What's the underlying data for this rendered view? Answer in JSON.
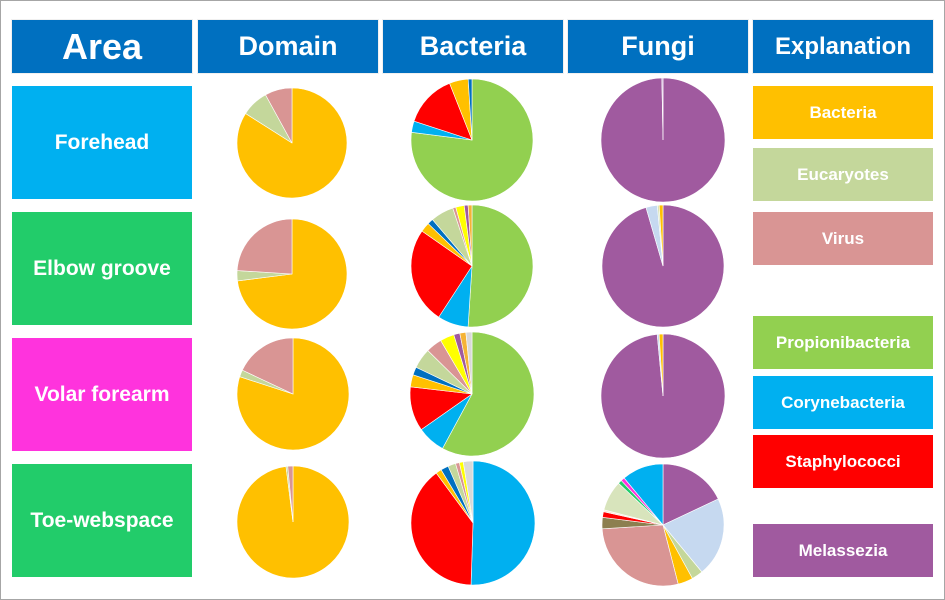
{
  "headers": {
    "area": "Area",
    "domain": "Domain",
    "bacteria": "Bacteria",
    "fungi": "Fungi",
    "explanation": "Explanation"
  },
  "colors": {
    "header_blue": "#0070c0",
    "forehead": "#00b0f0",
    "elbow_groove": "#22cc6a",
    "volar_forearm": "#ff33dd",
    "toe_webspace": "#22cc6a",
    "bacteria": "#ffc000",
    "eucaryotes": "#c4d79b",
    "virus": "#d99594",
    "propionibacteria": "#92d050",
    "corynebacteria": "#00b0f0",
    "staphylococci": "#ff0000",
    "melassezia": "#a05a9f"
  },
  "areas": [
    {
      "label": "Forehead",
      "color": "#00b0f0"
    },
    {
      "label": "Elbow groove",
      "color": "#22cc6a"
    },
    {
      "label": "Volar forearm",
      "color": "#ff33dd"
    },
    {
      "label": "Toe-webspace",
      "color": "#22cc6a"
    }
  ],
  "legend": [
    {
      "label": "Bacteria",
      "color": "#ffc000"
    },
    {
      "label": "Eucaryotes",
      "color": "#c4d79b"
    },
    {
      "label": "Virus",
      "color": "#d99594"
    },
    {
      "label": "Propionibacteria",
      "color": "#92d050"
    },
    {
      "label": "Corynebacteria",
      "color": "#00b0f0"
    },
    {
      "label": "Staphylococci",
      "color": "#ff0000"
    },
    {
      "label": "Melassezia",
      "color": "#a05a9f"
    }
  ],
  "chart_data": [
    {
      "type": "pie",
      "title": "Domain - Forehead",
      "categories": [
        "Bacteria",
        "Eucaryotes",
        "Virus"
      ],
      "values": [
        84,
        8,
        8
      ],
      "colors": [
        "#ffc000",
        "#c4d79b",
        "#d99594"
      ]
    },
    {
      "type": "pie",
      "title": "Bacteria - Forehead",
      "categories": [
        "Propionibacteria",
        "Corynebacteria",
        "Staphylococci",
        "Other (orange)",
        "Other (dark blue)"
      ],
      "values": [
        77,
        3,
        14,
        5,
        1
      ],
      "colors": [
        "#92d050",
        "#00b0f0",
        "#ff0000",
        "#ffc000",
        "#0070c0"
      ]
    },
    {
      "type": "pie",
      "title": "Fungi - Forehead",
      "categories": [
        "Melassezia",
        "Other"
      ],
      "values": [
        99.7,
        0.3
      ],
      "colors": [
        "#a05a9f",
        "#c9a8d6"
      ]
    },
    {
      "type": "pie",
      "title": "Domain - Elbow groove",
      "categories": [
        "Bacteria",
        "Eucaryotes",
        "Virus"
      ],
      "values": [
        73,
        3,
        24
      ],
      "colors": [
        "#ffc000",
        "#c4d79b",
        "#d99594"
      ]
    },
    {
      "type": "pie",
      "title": "Bacteria - Elbow groove",
      "categories": [
        "Propionibacteria",
        "Corynebacteria",
        "Staphylococci",
        "Other (orange)",
        "Other (dark blue)",
        "Other (light green)",
        "Other (pink)",
        "Other (yellow)",
        "Other (purple)",
        "Other (amber)"
      ],
      "values": [
        50,
        8,
        25,
        2.5,
        1.5,
        6,
        0.8,
        2.2,
        1,
        1
      ],
      "colors": [
        "#92d050",
        "#00b0f0",
        "#ff0000",
        "#ffc000",
        "#0070c0",
        "#c4d79b",
        "#d99594",
        "#ffff00",
        "#a05a9f",
        "#f5b335"
      ]
    },
    {
      "type": "pie",
      "title": "Fungi - Elbow groove",
      "categories": [
        "Melassezia",
        "Other (light blue)",
        "Other (light green)",
        "Other (orange)"
      ],
      "values": [
        95.5,
        3,
        0.5,
        1
      ],
      "colors": [
        "#a05a9f",
        "#c6d9f0",
        "#d7e4bd",
        "#ffc000"
      ]
    },
    {
      "type": "pie",
      "title": "Domain - Volar forearm",
      "categories": [
        "Bacteria",
        "Eucaryotes",
        "Virus"
      ],
      "values": [
        80,
        2,
        18
      ],
      "colors": [
        "#ffc000",
        "#c4d79b",
        "#d99594"
      ]
    },
    {
      "type": "pie",
      "title": "Bacteria - Volar forearm",
      "categories": [
        "Propionibacteria",
        "Corynebacteria",
        "Staphylococci",
        "Other (orange)",
        "Other (dark blue)",
        "Other (light green)",
        "Other (pink)",
        "Other (yellow)",
        "Other (purple)",
        "Other (amber)",
        "Other (grey)"
      ],
      "values": [
        55,
        7,
        11,
        3,
        2,
        5,
        4,
        3.5,
        1.5,
        1.5,
        1.5
      ],
      "colors": [
        "#92d050",
        "#00b0f0",
        "#ff0000",
        "#ffc000",
        "#0070c0",
        "#c4d79b",
        "#d99594",
        "#ffff00",
        "#a05a9f",
        "#f5b335",
        "#d9d9d9"
      ]
    },
    {
      "type": "pie",
      "title": "Fungi - Volar forearm",
      "categories": [
        "Melassezia",
        "Other (light blue)",
        "Other (orange)"
      ],
      "values": [
        98.5,
        0.5,
        1
      ],
      "colors": [
        "#a05a9f",
        "#c6d9f0",
        "#ffc000"
      ]
    },
    {
      "type": "pie",
      "title": "Domain - Toe-webspace",
      "categories": [
        "Bacteria",
        "Eucaryotes",
        "Virus"
      ],
      "values": [
        98,
        0.5,
        1.5
      ],
      "colors": [
        "#ffc000",
        "#c4d79b",
        "#d99594"
      ]
    },
    {
      "type": "pie",
      "title": "Bacteria - Toe-webspace",
      "categories": [
        "Corynebacteria",
        "Staphylococci",
        "Other (orange)",
        "Other (dark blue)",
        "Other (light green)",
        "Other (pink)",
        "Other (yellow)",
        "Other (grey)"
      ],
      "values": [
        50,
        39,
        1.5,
        2,
        2,
        1,
        1,
        2.5
      ],
      "colors": [
        "#00b0f0",
        "#ff0000",
        "#ffc000",
        "#0070c0",
        "#c4d79b",
        "#d99594",
        "#ffff00",
        "#d9d9d9"
      ]
    },
    {
      "type": "pie",
      "title": "Fungi - Toe-webspace",
      "categories": [
        "Melassezia",
        "Other (light blue)",
        "Other (light green)",
        "Other (orange)",
        "Other (pink)",
        "Other (olive)",
        "Other (red)",
        "Other (pale yellow)",
        "Other (pale green)",
        "Other (green)",
        "Other (magenta)",
        "Other (blue)"
      ],
      "values": [
        18,
        21,
        3,
        4,
        28,
        3,
        1.5,
        0.5,
        8,
        1,
        1,
        11
      ],
      "colors": [
        "#a05a9f",
        "#c6d9f0",
        "#c4d79b",
        "#ffc000",
        "#d99594",
        "#8c7f4f",
        "#ff0000",
        "#fde9d9",
        "#d8e4bc",
        "#22cc6a",
        "#ff33dd",
        "#00b0f0"
      ]
    }
  ]
}
